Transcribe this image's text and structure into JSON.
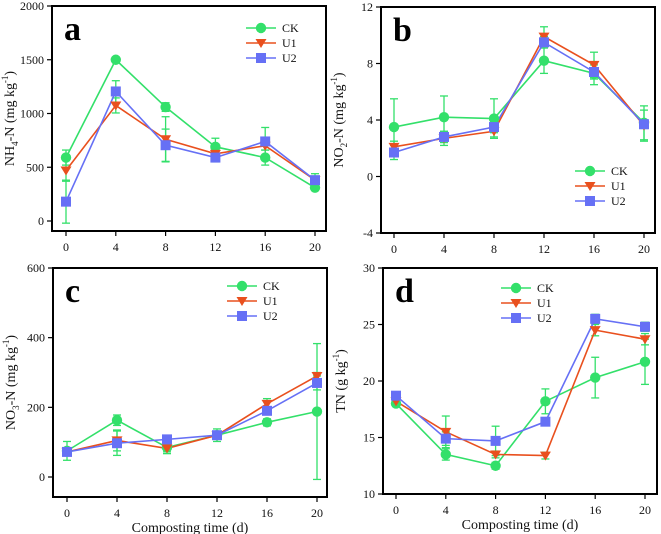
{
  "figure": {
    "series_colors": {
      "CK": "#33e06a",
      "U1": "#e9501e",
      "U2": "#6670f5"
    },
    "series_markers": {
      "CK": "circle",
      "U1": "triangle-down",
      "U2": "square"
    }
  },
  "chart_data": [
    {
      "type": "line",
      "panel_label": "a",
      "title": "",
      "xlabel": "",
      "ylabel": "NH4-N (mg kg-1)",
      "ylabel_parts": {
        "main": "NH",
        "sub": "4",
        "mid": "-N (mg kg",
        "sup": "-1",
        "end": ")"
      },
      "x": [
        0,
        4,
        8,
        12,
        16,
        20
      ],
      "xticks": [
        "0",
        "4",
        "8",
        "12",
        "16",
        "20"
      ],
      "yticks": [
        "0",
        "500",
        "1000",
        "1500",
        "2000"
      ],
      "ytick_values": [
        0,
        500,
        1000,
        1500,
        2000
      ],
      "ylim": [
        -100,
        2000
      ],
      "xlim": [
        -1.2,
        21.2
      ],
      "legend_position": "top-right",
      "series": [
        {
          "name": "CK",
          "values": [
            590,
            1500,
            1060,
            690,
            590,
            310
          ],
          "err": [
            70,
            20,
            40,
            80,
            70,
            20
          ]
        },
        {
          "name": "U1",
          "values": [
            470,
            1075,
            760,
            625,
            700,
            380
          ],
          "err": [
            100,
            70,
            210,
            40,
            40,
            30
          ]
        },
        {
          "name": "U2",
          "values": [
            180,
            1205,
            705,
            590,
            740,
            380
          ],
          "err": [
            200,
            100,
            150,
            40,
            130,
            60
          ]
        }
      ]
    },
    {
      "type": "line",
      "panel_label": "b",
      "title": "",
      "xlabel": "",
      "ylabel": "NO2-N (mg kg-1)",
      "ylabel_parts": {
        "main": "NO",
        "sub": "2",
        "mid": "-N (mg kg",
        "sup": "-1",
        "end": ")"
      },
      "x": [
        0,
        4,
        8,
        12,
        16,
        20
      ],
      "xticks": [
        "0",
        "4",
        "8",
        "12",
        "16",
        "20"
      ],
      "yticks": [
        "-4",
        "0",
        "4",
        "8",
        "12"
      ],
      "ytick_values": [
        -4,
        0,
        4,
        8,
        12
      ],
      "ylim": [
        -4,
        12
      ],
      "xlim": [
        -1.2,
        21.2
      ],
      "legend_position": "bottom-right",
      "series": [
        {
          "name": "CK",
          "values": [
            3.5,
            4.2,
            4.1,
            8.2,
            7.3,
            3.8
          ],
          "err": [
            2.0,
            1.5,
            1.4,
            0.9,
            0.8,
            1.2
          ]
        },
        {
          "name": "U1",
          "values": [
            2.1,
            2.7,
            3.2,
            9.9,
            7.9,
            3.6
          ],
          "err": [
            0.4,
            0.5,
            0.4,
            0.7,
            0.9,
            1.1
          ]
        },
        {
          "name": "U2",
          "values": [
            1.7,
            2.8,
            3.5,
            9.5,
            7.4,
            3.7
          ],
          "err": [
            0.5,
            0.4,
            0.4,
            0.4,
            0.5,
            0.3
          ]
        }
      ]
    },
    {
      "type": "line",
      "panel_label": "c",
      "title": "",
      "xlabel": "Composting time (d)",
      "ylabel": "NO3-N (mg kg-1)",
      "ylabel_parts": {
        "main": "NO",
        "sub": "3",
        "mid": "-N (mg kg",
        "sup": "-1",
        "end": ")"
      },
      "x": [
        0,
        4,
        8,
        12,
        16,
        20
      ],
      "xticks": [
        "0",
        "4",
        "8",
        "12",
        "16",
        "20"
      ],
      "yticks": [
        "0",
        "200",
        "400",
        "600"
      ],
      "ytick_values": [
        0,
        200,
        400,
        600
      ],
      "ylim": [
        -50,
        600
      ],
      "xlim": [
        -1.2,
        21.2
      ],
      "legend_position": "top-right",
      "series": [
        {
          "name": "CK",
          "values": [
            75,
            163,
            85,
            120,
            157,
            188
          ],
          "err": [
            27,
            15,
            18,
            18,
            10,
            195
          ]
        },
        {
          "name": "U1",
          "values": [
            72,
            105,
            82,
            120,
            210,
            290
          ],
          "err": [
            10,
            30,
            10,
            10,
            15,
            10
          ]
        },
        {
          "name": "U2",
          "values": [
            72,
            97,
            108,
            120,
            190,
            270
          ],
          "err": [
            10,
            35,
            8,
            10,
            10,
            20
          ]
        }
      ]
    },
    {
      "type": "line",
      "panel_label": "d",
      "title": "",
      "xlabel": "Composting time (d)",
      "ylabel": "TN (g kg-1)",
      "ylabel_parts": {
        "main": "TN (g kg",
        "sub": "",
        "mid": "",
        "sup": "-1",
        "end": ")"
      },
      "x": [
        0,
        4,
        8,
        12,
        16,
        20
      ],
      "xticks": [
        "0",
        "4",
        "8",
        "12",
        "16",
        "20"
      ],
      "yticks": [
        "10",
        "15",
        "20",
        "25",
        "30"
      ],
      "ytick_values": [
        10,
        15,
        20,
        25,
        30
      ],
      "ylim": [
        10,
        30
      ],
      "xlim": [
        -1.2,
        21.2
      ],
      "legend_position": "top-center",
      "series": [
        {
          "name": "CK",
          "values": [
            18.0,
            13.5,
            12.5,
            18.2,
            20.3,
            21.7
          ],
          "err": [
            0.2,
            0.5,
            0.3,
            1.1,
            1.8,
            2.0
          ]
        },
        {
          "name": "U1",
          "values": [
            18.2,
            15.5,
            13.5,
            13.4,
            24.5,
            23.7
          ],
          "err": [
            0.2,
            1.4,
            0.3,
            0.3,
            0.5,
            0.5
          ]
        },
        {
          "name": "U2",
          "values": [
            18.7,
            14.9,
            14.7,
            16.4,
            25.5,
            24.8
          ],
          "err": [
            0.2,
            0.6,
            1.3,
            0.3,
            0.4,
            0.4
          ]
        }
      ]
    }
  ]
}
